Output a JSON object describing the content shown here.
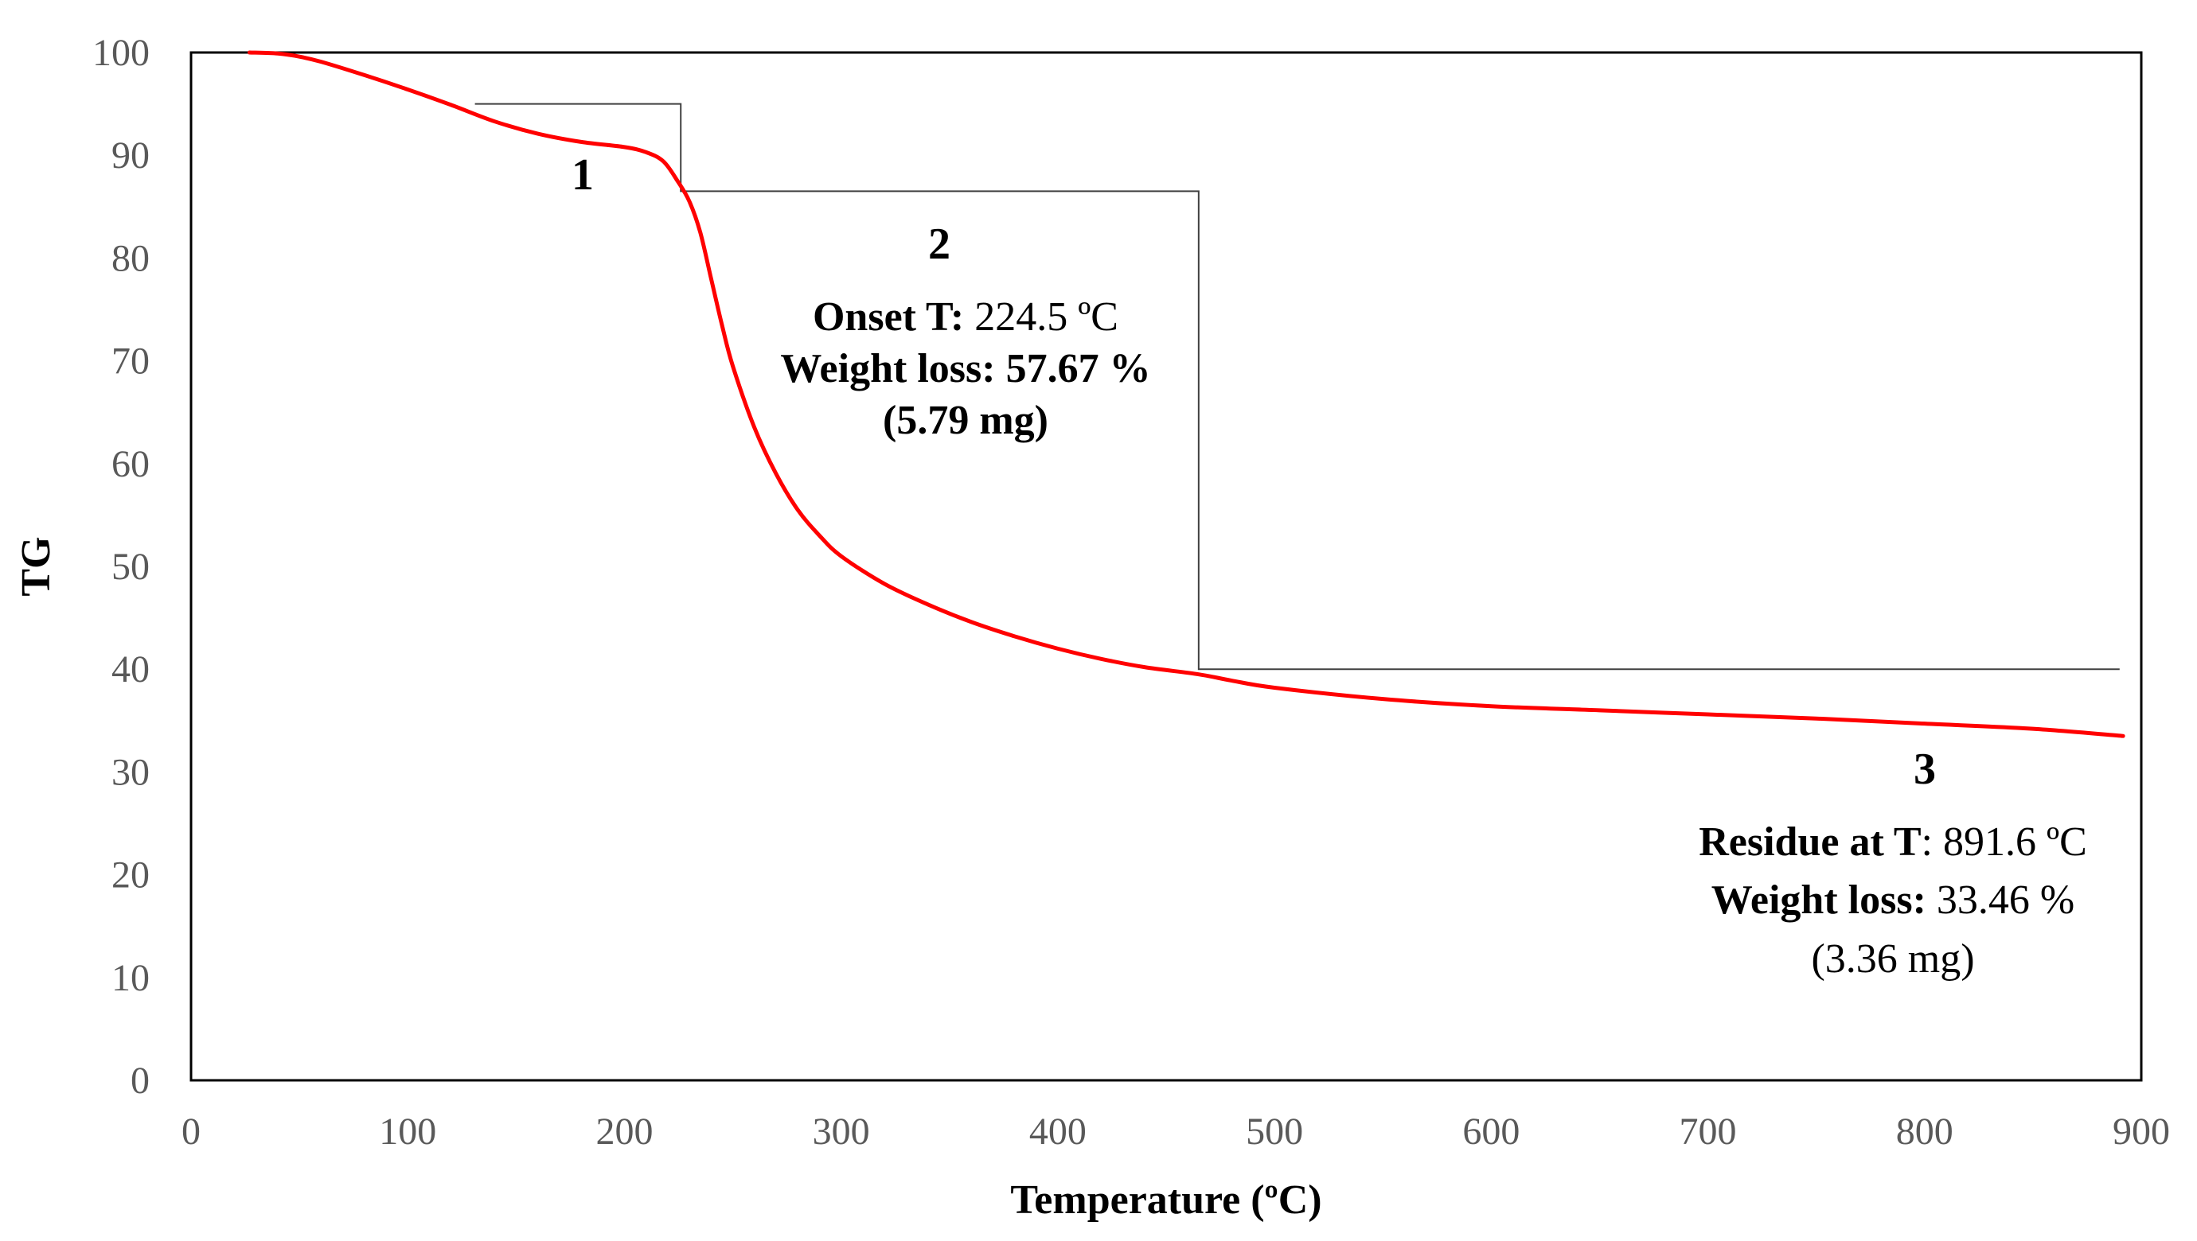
{
  "chart_data": {
    "type": "line",
    "title": "",
    "xlabel": "Temperature (ºC)",
    "ylabel": "TG",
    "xlim": [
      0,
      900
    ],
    "ylim": [
      0,
      100
    ],
    "xticks": [
      0,
      100,
      200,
      300,
      400,
      500,
      600,
      700,
      800,
      900
    ],
    "yticks": [
      0,
      10,
      20,
      30,
      40,
      50,
      60,
      70,
      80,
      90,
      100
    ],
    "grid": false,
    "series": [
      {
        "name": "TG",
        "color": "#ff0000",
        "points": [
          [
            27,
            100
          ],
          [
            40,
            99.9
          ],
          [
            50,
            99.6
          ],
          [
            60,
            99.1
          ],
          [
            80,
            97.8
          ],
          [
            100,
            96.4
          ],
          [
            120,
            94.9
          ],
          [
            140,
            93.3
          ],
          [
            160,
            92.1
          ],
          [
            180,
            91.3
          ],
          [
            200,
            90.8
          ],
          [
            210,
            90.3
          ],
          [
            218,
            89.4
          ],
          [
            224.5,
            87.5
          ],
          [
            230,
            85.5
          ],
          [
            235,
            82.5
          ],
          [
            240,
            78.0
          ],
          [
            245,
            73.5
          ],
          [
            250,
            69.5
          ],
          [
            260,
            63.5
          ],
          [
            270,
            59.0
          ],
          [
            280,
            55.5
          ],
          [
            290,
            53.0
          ],
          [
            300,
            51.0
          ],
          [
            320,
            48.3
          ],
          [
            340,
            46.3
          ],
          [
            360,
            44.6
          ],
          [
            380,
            43.2
          ],
          [
            400,
            42.0
          ],
          [
            420,
            41.0
          ],
          [
            440,
            40.2
          ],
          [
            465,
            39.5
          ],
          [
            480,
            38.9
          ],
          [
            500,
            38.2
          ],
          [
            550,
            37.1
          ],
          [
            600,
            36.4
          ],
          [
            650,
            36.0
          ],
          [
            700,
            35.6
          ],
          [
            750,
            35.2
          ],
          [
            800,
            34.7
          ],
          [
            850,
            34.2
          ],
          [
            891.6,
            33.5
          ]
        ]
      }
    ],
    "step_lines": [
      [
        [
          131,
          95
        ],
        [
          226,
          95
        ],
        [
          226,
          86.5
        ],
        [
          465,
          86.5
        ],
        [
          465,
          40
        ],
        [
          890,
          40
        ]
      ]
    ],
    "annotations": {
      "stage1": {
        "label": "1"
      },
      "stage2": {
        "label": "2",
        "onset_label": "Onset T:",
        "onset_value": "224.5 ºC",
        "loss_label": "Weight loss:",
        "loss_value": "57.67 %",
        "mass": "(5.79 mg)"
      },
      "stage3": {
        "label": "3",
        "residue_label": "Residue at T",
        "residue_value": ": 891.6 ºC",
        "loss_label": "Weight loss:",
        "loss_value": "33.46 %",
        "mass": "(3.36 mg)"
      }
    }
  }
}
